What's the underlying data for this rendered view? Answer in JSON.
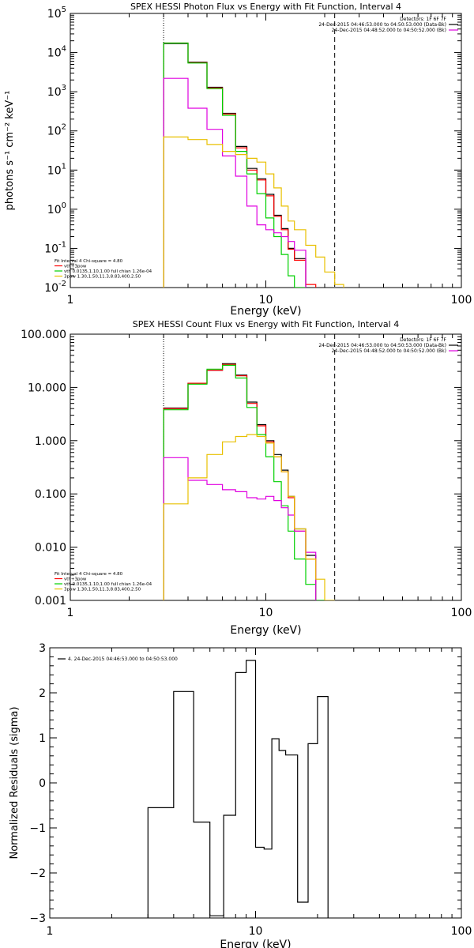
{
  "chart_data": [
    {
      "type": "line",
      "title": "SPEX HESSI Photon Flux vs Energy with Fit Function, Interval 4",
      "xlabel": "Energy (keV)",
      "ylabel": "photons s⁻¹ cm⁻² keV⁻¹",
      "x_scale": "log",
      "y_scale": "log",
      "xlim": [
        1,
        100
      ],
      "ylim": [
        0.01,
        100000
      ],
      "x_ticks": [
        {
          "v": 1,
          "label": "1"
        },
        {
          "v": 10,
          "label": "10"
        },
        {
          "v": 100,
          "label": "100"
        }
      ],
      "y_ticks": [
        {
          "v": 0.01,
          "base": "10",
          "exp": "-2"
        },
        {
          "v": 0.1,
          "base": "10",
          "exp": "-1"
        },
        {
          "v": 1,
          "base": "10",
          "exp": "0"
        },
        {
          "v": 10,
          "base": "10",
          "exp": "1"
        },
        {
          "v": 100,
          "base": "10",
          "exp": "2"
        },
        {
          "v": 1000,
          "base": "10",
          "exp": "3"
        },
        {
          "v": 10000,
          "base": "10",
          "exp": "4"
        },
        {
          "v": 100000,
          "base": "10",
          "exp": "5"
        }
      ],
      "fit_range": [
        3,
        22.5
      ],
      "bin_edges": [
        3,
        4,
        5,
        6,
        7,
        8,
        9,
        10,
        11,
        12,
        13,
        14,
        16,
        18,
        20,
        22.5,
        25
      ],
      "info_right": [
        "Detectors: 1F 6F 7F",
        "24-Dec-2015 04:46:53.000 to 04:50:53.000 (Data-Bk)",
        "24-Dec-2015 04:48:52.000 to 04:50:52.000 (Bk)"
      ],
      "info_left": [
        "Fit Interval  4   Chi-square = 4.80",
        "vth+3pow",
        "vth 0.0135,1.10,1.00  full chian 1.26e-04",
        "3pow 1.30,1.50,11.3,8.83,400,2.50"
      ],
      "legend_colors": [
        "#000000",
        "#000000",
        "#e000e0"
      ],
      "fit_legend_colors": [
        "#ff0000",
        "#00d000",
        "#e8c000"
      ],
      "series": [
        {
          "color": "#000000",
          "values": [
            17000,
            5700,
            1300,
            280,
            40,
            11,
            6,
            2.4,
            0.7,
            0.32,
            0.1,
            0.055,
            null,
            null,
            null,
            null
          ]
        },
        {
          "color": "#ff0000",
          "values": [
            17500,
            5500,
            1250,
            270,
            37,
            10,
            5.6,
            2.2,
            0.66,
            0.3,
            0.095,
            0.05,
            0.012,
            null,
            null,
            null
          ]
        },
        {
          "color": "#00d000",
          "values": [
            17500,
            5400,
            1200,
            250,
            30,
            8,
            2.5,
            0.6,
            0.2,
            0.07,
            0.02,
            0.008,
            null,
            null,
            null,
            null
          ]
        },
        {
          "color": "#e000e0",
          "values": [
            2200,
            380,
            110,
            23,
            7,
            1.2,
            0.4,
            0.3,
            0.25,
            0.2,
            0.15,
            0.09,
            null,
            null,
            null,
            null
          ]
        },
        {
          "color": "#e8c000",
          "values": [
            70,
            60,
            45,
            30,
            25,
            20,
            16,
            8,
            3.5,
            1.2,
            0.5,
            0.3,
            0.12,
            0.06,
            0.025,
            0.012
          ]
        }
      ]
    },
    {
      "type": "line",
      "title": "SPEX HESSI Count Flux vs Energy with Fit Function, Interval 4",
      "xlabel": "Energy (keV)",
      "ylabel": "",
      "x_scale": "log",
      "y_scale": "log",
      "xlim": [
        1,
        100
      ],
      "ylim": [
        0.001,
        100
      ],
      "x_ticks": [
        {
          "v": 1,
          "label": "1"
        },
        {
          "v": 10,
          "label": "10"
        },
        {
          "v": 100,
          "label": "100"
        }
      ],
      "y_ticks": [
        {
          "v": 0.001,
          "label": "0.001"
        },
        {
          "v": 0.01,
          "label": "0.010"
        },
        {
          "v": 0.1,
          "label": "0.100"
        },
        {
          "v": 1,
          "label": "1.000"
        },
        {
          "v": 10,
          "label": "10.000"
        },
        {
          "v": 100,
          "label": "100.000"
        }
      ],
      "fit_range": [
        3,
        22.5
      ],
      "bin_edges": [
        3,
        4,
        5,
        6,
        7,
        8,
        9,
        10,
        11,
        12,
        13,
        14,
        16,
        18,
        20,
        22.5,
        25,
        27
      ],
      "info_right": [
        "Detectors: 1F 6F 7F",
        "24-Dec-2015 04:46:53.000 to 04:50:53.000 (Data-Bk)",
        "24-Dec-2015 04:48:52.000 to 04:50:52.000 (Bk)"
      ],
      "info_left": [
        "Fit Interval  4   Chi-square = 4.80",
        "vth+3pow",
        "vth 0.0135,1.10,1.00  full chian 1.26e-04",
        "3pow 1.30,1.50,11.3,8.83,400,2.50"
      ],
      "legend_colors": [
        "#000000",
        "#000000",
        "#e000e0"
      ],
      "fit_legend_colors": [
        "#ff0000",
        "#00d000",
        "#e8c000"
      ],
      "series": [
        {
          "color": "#000000",
          "values": [
            4.1,
            12,
            21,
            28,
            17,
            5.3,
            2,
            1,
            0.55,
            0.28,
            0.09,
            0.022,
            0.007,
            null,
            null,
            null,
            null
          ]
        },
        {
          "color": "#ff0000",
          "values": [
            4.0,
            12,
            21,
            27,
            16.5,
            5,
            1.9,
            0.95,
            0.5,
            0.26,
            0.085,
            0.02,
            0.006,
            null,
            null,
            null,
            null
          ]
        },
        {
          "color": "#00d000",
          "values": [
            3.8,
            11.5,
            22,
            26,
            15,
            4.2,
            1.3,
            0.5,
            0.17,
            0.06,
            0.02,
            0.006,
            0.002,
            0.0009,
            null,
            null,
            null
          ]
        },
        {
          "color": "#e000e0",
          "values": [
            0.48,
            0.18,
            0.15,
            0.12,
            0.11,
            0.085,
            0.08,
            0.09,
            0.075,
            0.055,
            0.04,
            0.02,
            0.008,
            null,
            null,
            null,
            null
          ]
        },
        {
          "color": "#e8c000",
          "values": [
            0.065,
            0.2,
            0.55,
            0.95,
            1.2,
            1.3,
            1.2,
            0.9,
            0.5,
            0.26,
            0.09,
            0.022,
            0.006,
            0.0025,
            0.0009,
            null,
            null
          ]
        }
      ]
    },
    {
      "type": "line",
      "title": "",
      "xlabel": "Energy (keV)",
      "ylabel": "Normalized Residuals (sigma)",
      "x_scale": "log",
      "y_scale": "linear",
      "xlim": [
        1,
        100
      ],
      "ylim": [
        -3,
        3
      ],
      "x_ticks": [
        {
          "v": 1,
          "label": "1"
        },
        {
          "v": 10,
          "label": "10"
        },
        {
          "v": 100,
          "label": "100"
        }
      ],
      "y_ticks": [
        {
          "v": -3,
          "label": "−3"
        },
        {
          "v": -2,
          "label": "−2"
        },
        {
          "v": -1,
          "label": "−1"
        },
        {
          "v": 0,
          "label": "0"
        },
        {
          "v": 1,
          "label": "1"
        },
        {
          "v": 2,
          "label": "2"
        },
        {
          "v": 3,
          "label": "3"
        }
      ],
      "legend": "4. 24-Dec-2015 04:46:53.000 to 04:50:53.000",
      "bin_edges": [
        3,
        4,
        5,
        6,
        7,
        8,
        9,
        10,
        11,
        12,
        13,
        14,
        16,
        18,
        20,
        22.5
      ],
      "series": [
        {
          "color": "#000000",
          "values": [
            -0.55,
            2.03,
            -0.87,
            -2.95,
            -0.72,
            2.45,
            2.72,
            -1.43,
            -1.47,
            0.98,
            0.72,
            0.62,
            -2.65,
            0.87,
            1.92
          ]
        }
      ]
    }
  ]
}
